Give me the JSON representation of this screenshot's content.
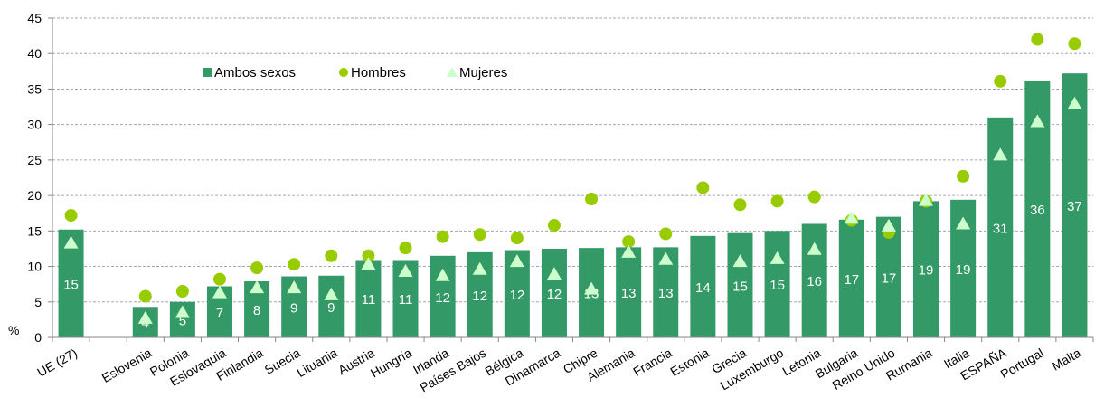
{
  "chart_data": {
    "type": "bar",
    "ylabel": "%",
    "ylim": [
      0,
      45
    ],
    "yticks": [
      0,
      5,
      10,
      15,
      20,
      25,
      30,
      35,
      40,
      45
    ],
    "grid": true,
    "legend_position": "top-left",
    "categories": [
      "UE (27)",
      "",
      "Eslovenia",
      "Polonia",
      "Eslovaquia",
      "Finlandia",
      "Suecia",
      "Lituania",
      "Austria",
      "Hungría",
      "Irlanda",
      "Países Bajos",
      "Bélgica",
      "Dinamarca",
      "Chipre",
      "Alemania",
      "Francia",
      "Estonia",
      "Grecia",
      "Luxemburgo",
      "Letonia",
      "Bulgaria",
      "Reino Unido",
      "Rumania",
      "Italia",
      "ESPAÑA",
      "Portugal",
      "Malta"
    ],
    "series": [
      {
        "name": "Ambos sexos",
        "kind": "bar",
        "color": "#339966",
        "values": [
          15.2,
          null,
          4.3,
          5.0,
          7.2,
          7.9,
          8.6,
          8.7,
          10.9,
          10.9,
          11.5,
          12.0,
          12.3,
          12.5,
          12.6,
          12.7,
          12.7,
          14.3,
          14.7,
          15.0,
          16.0,
          16.6,
          17.0,
          19.2,
          19.4,
          31.0,
          36.2,
          37.2
        ],
        "labels": [
          "15",
          "",
          "4",
          "5",
          "7",
          "8",
          "9",
          "9",
          "11",
          "11",
          "12",
          "12",
          "12",
          "12",
          "13",
          "13",
          "13",
          "14",
          "15",
          "15",
          "16",
          "17",
          "17",
          "19",
          "19",
          "31",
          "36",
          "37"
        ]
      },
      {
        "name": "Hombres",
        "kind": "marker-circle",
        "color": "#99cc00",
        "values": [
          17.2,
          null,
          5.8,
          6.5,
          8.2,
          9.8,
          10.3,
          11.5,
          11.5,
          12.6,
          14.2,
          14.5,
          14.0,
          15.8,
          19.5,
          13.5,
          14.6,
          21.1,
          18.7,
          19.2,
          19.8,
          16.5,
          14.8,
          19.2,
          22.7,
          36.1,
          42.0,
          41.4
        ]
      },
      {
        "name": "Mujeres",
        "kind": "marker-triangle",
        "color": "#ccffcc",
        "values": [
          13.3,
          null,
          2.7,
          3.5,
          6.3,
          7.0,
          7.0,
          6.0,
          10.3,
          9.3,
          8.7,
          9.6,
          10.7,
          8.9,
          6.8,
          12.0,
          11.0,
          null,
          10.7,
          11.1,
          12.4,
          16.8,
          15.7,
          19.3,
          16.0,
          25.7,
          30.4,
          32.9
        ]
      }
    ]
  }
}
